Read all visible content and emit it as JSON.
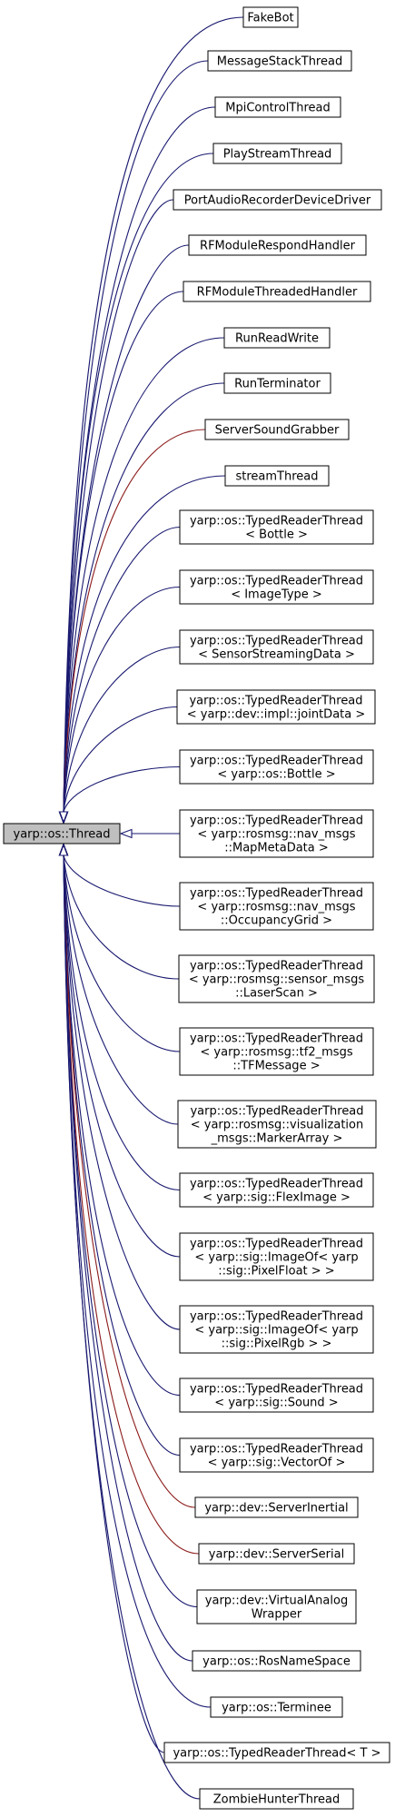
{
  "base": {
    "label": "yarp::os::Thread"
  },
  "colors": {
    "edge_public": "#191970",
    "edge_protected": "#8b1a1a",
    "base_fill": "#bfbfbf"
  },
  "classes": [
    {
      "lines": [
        "FakeBot"
      ],
      "edge": "public"
    },
    {
      "lines": [
        "MessageStackThread"
      ],
      "edge": "public"
    },
    {
      "lines": [
        "MpiControlThread"
      ],
      "edge": "public"
    },
    {
      "lines": [
        "PlayStreamThread"
      ],
      "edge": "public"
    },
    {
      "lines": [
        "PortAudioRecorderDeviceDriver"
      ],
      "edge": "public"
    },
    {
      "lines": [
        "RFModuleRespondHandler"
      ],
      "edge": "public"
    },
    {
      "lines": [
        "RFModuleThreadedHandler"
      ],
      "edge": "public"
    },
    {
      "lines": [
        "RunReadWrite"
      ],
      "edge": "public"
    },
    {
      "lines": [
        "RunTerminator"
      ],
      "edge": "public"
    },
    {
      "lines": [
        "ServerSoundGrabber"
      ],
      "edge": "protected"
    },
    {
      "lines": [
        "streamThread"
      ],
      "edge": "public"
    },
    {
      "lines": [
        "yarp::os::TypedReaderThread",
        "< Bottle >"
      ],
      "edge": "public"
    },
    {
      "lines": [
        "yarp::os::TypedReaderThread",
        "< ImageType >"
      ],
      "edge": "public"
    },
    {
      "lines": [
        "yarp::os::TypedReaderThread",
        "< SensorStreamingData >"
      ],
      "edge": "public"
    },
    {
      "lines": [
        "yarp::os::TypedReaderThread",
        "< yarp::dev::impl::jointData >"
      ],
      "edge": "public"
    },
    {
      "lines": [
        "yarp::os::TypedReaderThread",
        "< yarp::os::Bottle >"
      ],
      "edge": "public"
    },
    {
      "lines": [
        "yarp::os::TypedReaderThread",
        "< yarp::rosmsg::nav_msgs",
        "::MapMetaData >"
      ],
      "edge": "public"
    },
    {
      "lines": [
        "yarp::os::TypedReaderThread",
        "< yarp::rosmsg::nav_msgs",
        "::OccupancyGrid >"
      ],
      "edge": "public"
    },
    {
      "lines": [
        "yarp::os::TypedReaderThread",
        "< yarp::rosmsg::sensor_msgs",
        "::LaserScan >"
      ],
      "edge": "public"
    },
    {
      "lines": [
        "yarp::os::TypedReaderThread",
        "< yarp::rosmsg::tf2_msgs",
        "::TFMessage >"
      ],
      "edge": "public"
    },
    {
      "lines": [
        "yarp::os::TypedReaderThread",
        "< yarp::rosmsg::visualization",
        "_msgs::MarkerArray >"
      ],
      "edge": "public"
    },
    {
      "lines": [
        "yarp::os::TypedReaderThread",
        "< yarp::sig::FlexImage >"
      ],
      "edge": "public"
    },
    {
      "lines": [
        "yarp::os::TypedReaderThread",
        "< yarp::sig::ImageOf< yarp",
        "::sig::PixelFloat > >"
      ],
      "edge": "public"
    },
    {
      "lines": [
        "yarp::os::TypedReaderThread",
        "< yarp::sig::ImageOf< yarp",
        "::sig::PixelRgb > >"
      ],
      "edge": "public"
    },
    {
      "lines": [
        "yarp::os::TypedReaderThread",
        "< yarp::sig::Sound >"
      ],
      "edge": "public"
    },
    {
      "lines": [
        "yarp::os::TypedReaderThread",
        "< yarp::sig::VectorOf >"
      ],
      "edge": "public"
    },
    {
      "lines": [
        "yarp::dev::ServerInertial"
      ],
      "edge": "protected"
    },
    {
      "lines": [
        "yarp::dev::ServerSerial"
      ],
      "edge": "protected"
    },
    {
      "lines": [
        "yarp::dev::VirtualAnalog",
        "Wrapper"
      ],
      "edge": "public"
    },
    {
      "lines": [
        "yarp::os::RosNameSpace"
      ],
      "edge": "public"
    },
    {
      "lines": [
        "yarp::os::Terminee"
      ],
      "edge": "public"
    },
    {
      "lines": [
        "yarp::os::TypedReaderThread< T >"
      ],
      "edge": "public"
    },
    {
      "lines": [
        "ZombieHunterThread"
      ],
      "edge": "public"
    }
  ]
}
